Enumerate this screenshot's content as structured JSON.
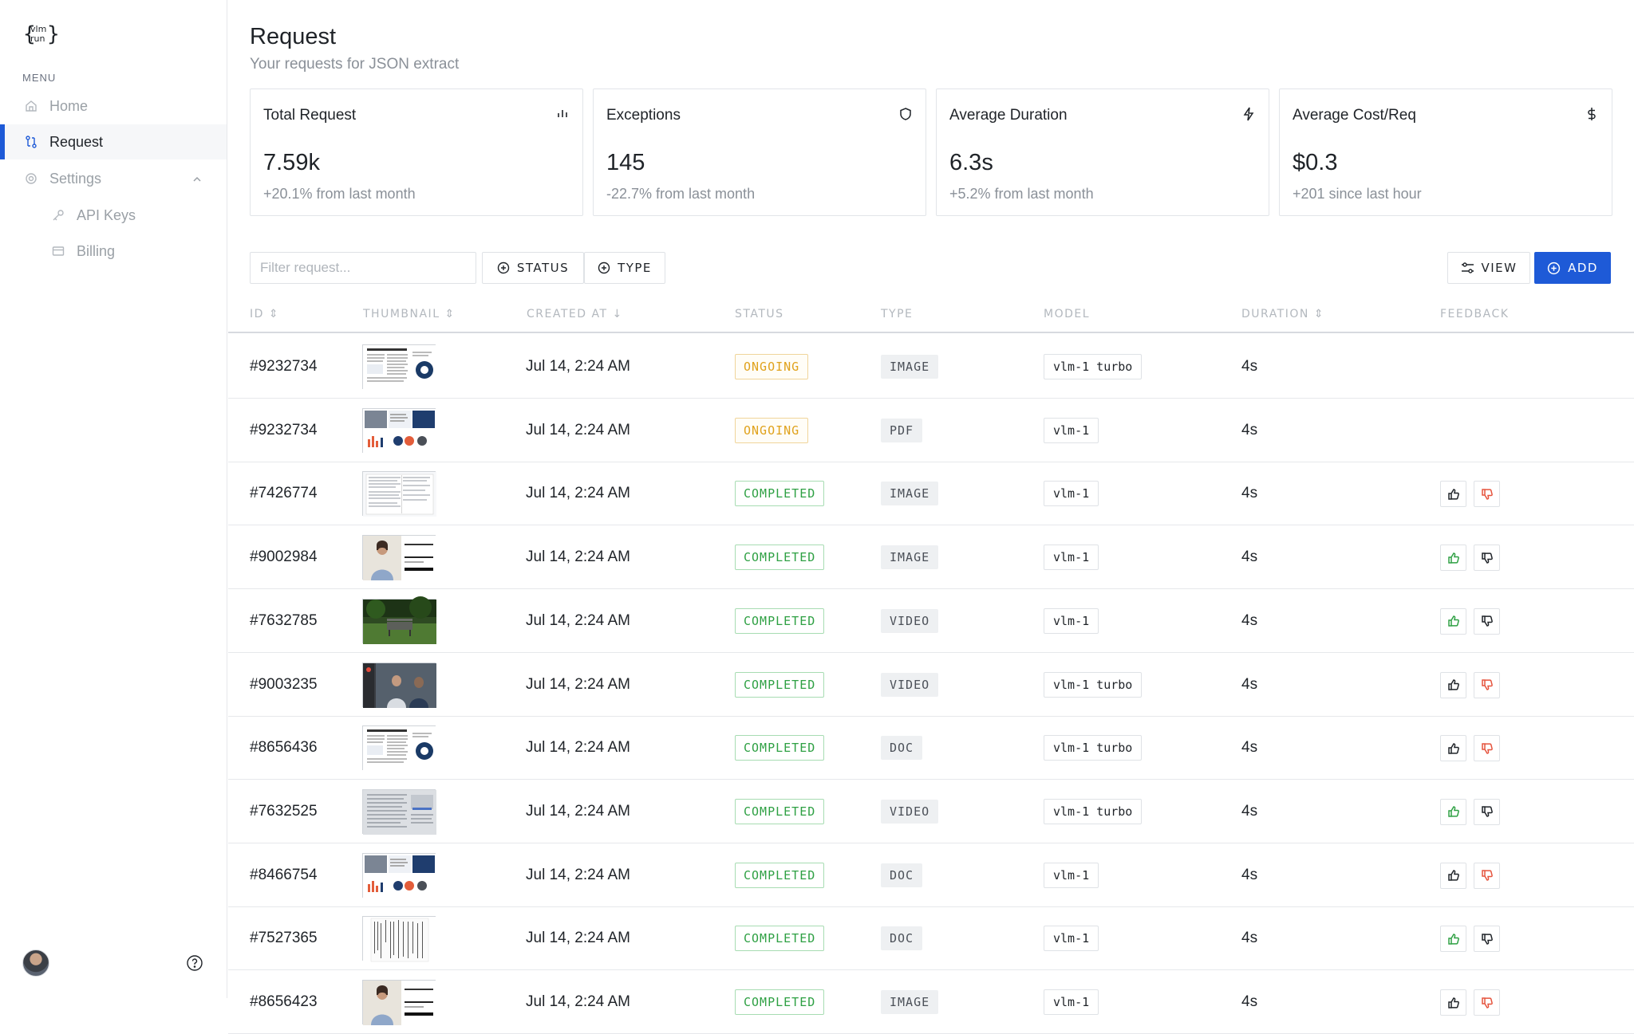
{
  "sidebar": {
    "logo_text": "{vlm run}",
    "menu_label": "MENU",
    "items": [
      {
        "label": "Home",
        "icon": "home-icon"
      },
      {
        "label": "Request",
        "icon": "request-icon",
        "active": true
      },
      {
        "label": "Settings",
        "icon": "gear-icon",
        "expanded": true
      },
      {
        "label": "API Keys",
        "icon": "key-icon"
      },
      {
        "label": "Billing",
        "icon": "card-icon"
      }
    ]
  },
  "header": {
    "title": "Request",
    "subtitle": "Your requests for JSON extract"
  },
  "stats": [
    {
      "title": "Total Request",
      "value": "7.59k",
      "sub": "+20.1% from last month",
      "icon": "bar-chart-icon"
    },
    {
      "title": "Exceptions",
      "value": "145",
      "sub": "-22.7% from last month",
      "icon": "shield-icon"
    },
    {
      "title": "Average Duration",
      "value": "6.3s",
      "sub": "+5.2% from last month",
      "icon": "lightning-icon"
    },
    {
      "title": "Average Cost/Req",
      "value": "$0.3",
      "sub": "+201 since last hour",
      "icon": "dollar-icon"
    }
  ],
  "toolbar": {
    "filter_placeholder": "Filter request...",
    "status_label": "STATUS",
    "type_label": "TYPE",
    "view_label": "VIEW",
    "add_label": "ADD"
  },
  "table": {
    "columns": [
      "ID",
      "THUMBNAIL",
      "CREATED AT",
      "STATUS",
      "TYPE",
      "MODEL",
      "DURATION",
      "FEEDBACK"
    ],
    "rows": [
      {
        "id": "#9232734",
        "created": "Jul 14, 2:24 AM",
        "status": "ONGOING",
        "type": "IMAGE",
        "model": "vlm-1 turbo",
        "duration": "4s",
        "thumb": "doc-chart",
        "feedback": null
      },
      {
        "id": "#9232734",
        "created": "Jul 14, 2:24 AM",
        "status": "ONGOING",
        "type": "PDF",
        "model": "vlm-1",
        "duration": "4s",
        "thumb": "slides",
        "feedback": null
      },
      {
        "id": "#7426774",
        "created": "Jul 14, 2:24 AM",
        "status": "COMPLETED",
        "type": "IMAGE",
        "model": "vlm-1",
        "duration": "4s",
        "thumb": "form",
        "feedback": "down"
      },
      {
        "id": "#9002984",
        "created": "Jul 14, 2:24 AM",
        "status": "COMPLETED",
        "type": "IMAGE",
        "model": "vlm-1",
        "duration": "4s",
        "thumb": "person",
        "feedback": "up"
      },
      {
        "id": "#7632785",
        "created": "Jul 14, 2:24 AM",
        "status": "COMPLETED",
        "type": "VIDEO",
        "model": "vlm-1",
        "duration": "4s",
        "thumb": "park",
        "feedback": "up"
      },
      {
        "id": "#9003235",
        "created": "Jul 14, 2:24 AM",
        "status": "COMPLETED",
        "type": "VIDEO",
        "model": "vlm-1 turbo",
        "duration": "4s",
        "thumb": "video",
        "feedback": "down"
      },
      {
        "id": "#8656436",
        "created": "Jul 14, 2:24 AM",
        "status": "COMPLETED",
        "type": "DOC",
        "model": "vlm-1 turbo",
        "duration": "4s",
        "thumb": "doc-chart",
        "feedback": "down"
      },
      {
        "id": "#7632525",
        "created": "Jul 14, 2:24 AM",
        "status": "COMPLETED",
        "type": "VIDEO",
        "model": "vlm-1 turbo",
        "duration": "4s",
        "thumb": "gray-doc",
        "feedback": "up"
      },
      {
        "id": "#8466754",
        "created": "Jul 14, 2:24 AM",
        "status": "COMPLETED",
        "type": "DOC",
        "model": "vlm-1",
        "duration": "4s",
        "thumb": "slides",
        "feedback": "down"
      },
      {
        "id": "#7527365",
        "created": "Jul 14, 2:24 AM",
        "status": "COMPLETED",
        "type": "DOC",
        "model": "vlm-1",
        "duration": "4s",
        "thumb": "text-doc",
        "feedback": "up"
      },
      {
        "id": "#8656423",
        "created": "Jul 14, 2:24 AM",
        "status": "COMPLETED",
        "type": "IMAGE",
        "model": "vlm-1",
        "duration": "4s",
        "thumb": "person",
        "feedback": "down"
      }
    ]
  },
  "colors": {
    "accent": "#1e5ad7",
    "ongoing": "#e0a21c",
    "completed": "#2ea043",
    "thumbs_up": "#2ea043",
    "thumbs_down": "#e5533d"
  }
}
